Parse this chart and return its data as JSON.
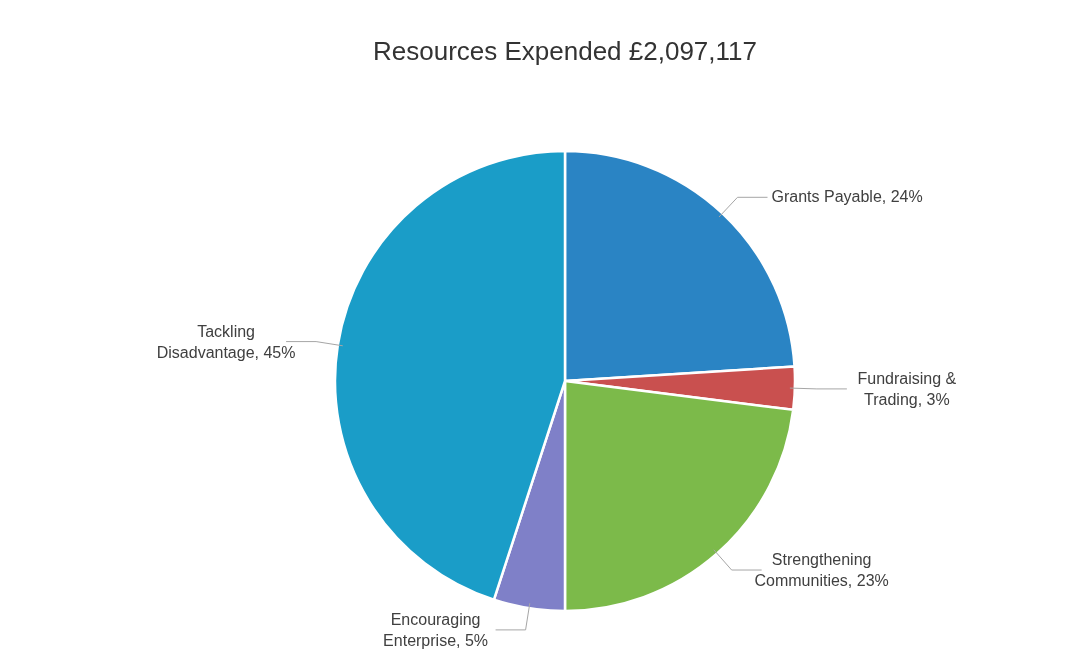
{
  "chart_data": {
    "type": "pie",
    "title": "Resources Expended £2,097,117",
    "categories": [
      "Grants Payable",
      "Fundraising & Trading",
      "Strengthening Communities",
      "Encouraging Enterprise",
      "Tackling Disadvantage"
    ],
    "values": [
      24,
      3,
      23,
      5,
      45
    ],
    "value_labels": [
      "24%",
      "3%",
      "23%",
      "5%",
      "45%"
    ],
    "colors": [
      "#2a84c4",
      "#c9504f",
      "#7cba4a",
      "#7f80c8",
      "#1a9dc8"
    ]
  }
}
